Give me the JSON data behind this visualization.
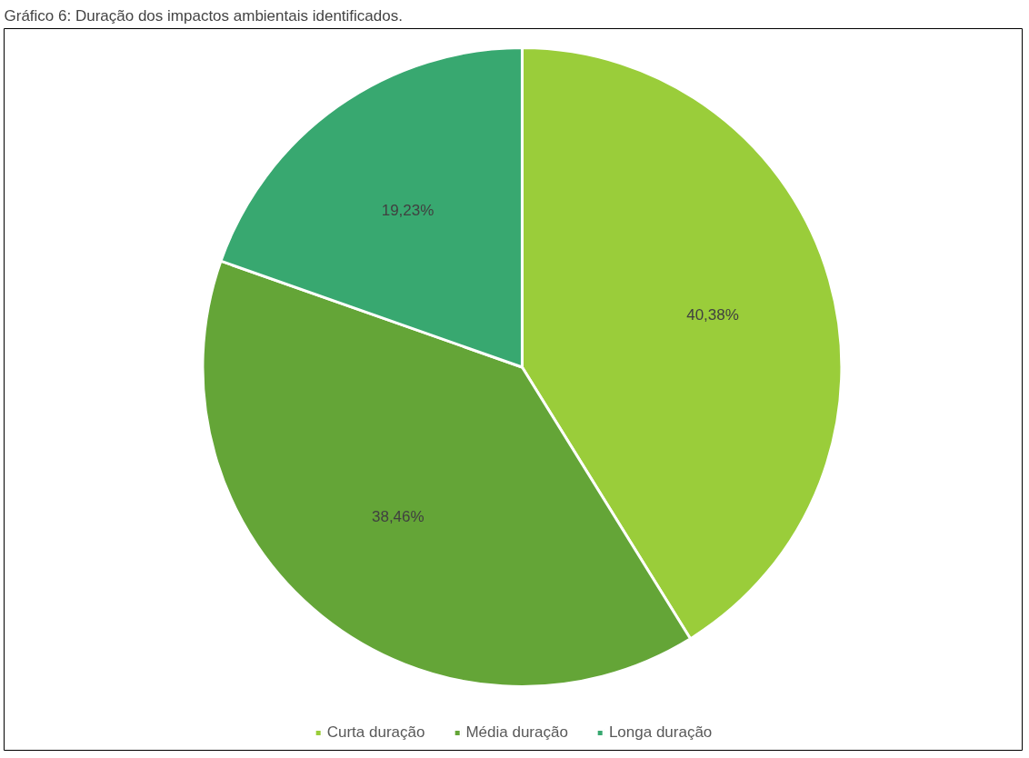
{
  "chart_data": {
    "type": "pie",
    "title": "Gráfico 6: Duração dos impactos ambientais identificados.",
    "categories": [
      "Curta duração",
      "Média duração",
      "Longa duração"
    ],
    "values": [
      40.38,
      38.46,
      19.23
    ],
    "colors": [
      "#9acd3a",
      "#64a537",
      "#38a870"
    ],
    "value_labels": [
      "40,38%",
      "38,46%",
      "19,23%"
    ],
    "legend": "bottom"
  }
}
